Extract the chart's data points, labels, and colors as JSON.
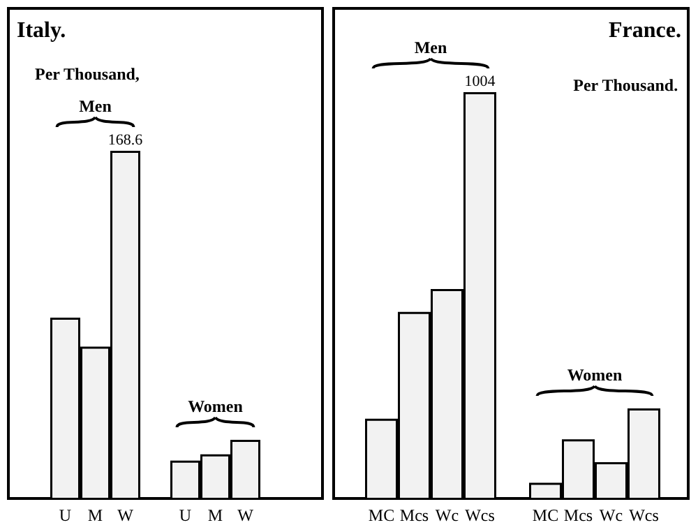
{
  "chart_data": [
    {
      "type": "bar",
      "title": "Italy.",
      "ylabel": "Per Thousand,",
      "categories": [
        "U",
        "M",
        "W",
        null,
        "U",
        "M",
        "W"
      ],
      "series": [
        {
          "name": "Men",
          "color": "#f2f2f2",
          "values": [
            88,
            74,
            168.6,
            null,
            null,
            null,
            null
          ],
          "value_labels": [
            null,
            null,
            "168.6",
            null,
            null,
            null,
            null
          ]
        },
        {
          "name": "Women",
          "color": "#f2f2f2",
          "values": [
            null,
            null,
            null,
            null,
            19,
            22,
            29
          ]
        }
      ]
    },
    {
      "type": "bar",
      "title": "France.",
      "ylabel": "Per Thousand.",
      "categories": [
        "MC",
        "Mcs",
        "Wc",
        "Wcs",
        null,
        "MC",
        "Mcs",
        "Wc",
        "Wcs"
      ],
      "series": [
        {
          "name": "Men",
          "color": "#f2f2f2",
          "values": [
            200,
            463,
            519,
            1004,
            null,
            null,
            null,
            null,
            null
          ],
          "value_labels": [
            null,
            null,
            null,
            "1004",
            null,
            null,
            null,
            null,
            null
          ]
        },
        {
          "name": "Women",
          "color": "#f2f2f2",
          "values": [
            null,
            null,
            null,
            null,
            null,
            42,
            149,
            93,
            225
          ]
        }
      ]
    }
  ]
}
